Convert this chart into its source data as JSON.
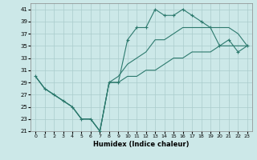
{
  "xlabel": "Humidex (Indice chaleur)",
  "background_color": "#cce8e8",
  "grid_color": "#aacccc",
  "line_color": "#2d7a6e",
  "xlim": [
    -0.5,
    23.5
  ],
  "ylim": [
    21,
    42
  ],
  "xticks": [
    0,
    1,
    2,
    3,
    4,
    5,
    6,
    7,
    8,
    9,
    10,
    11,
    12,
    13,
    14,
    15,
    16,
    17,
    18,
    19,
    20,
    21,
    22,
    23
  ],
  "yticks": [
    21,
    23,
    25,
    27,
    29,
    31,
    33,
    35,
    37,
    39,
    41
  ],
  "series": [
    {
      "x": [
        0,
        1,
        2,
        3,
        4,
        5,
        6,
        7,
        8,
        9,
        10,
        11,
        12,
        13,
        14,
        15,
        16,
        17,
        18,
        19,
        20,
        21,
        22,
        23
      ],
      "y": [
        30,
        28,
        27,
        26,
        25,
        23,
        23,
        21,
        29,
        29,
        36,
        38,
        38,
        41,
        40,
        40,
        41,
        40,
        39,
        38,
        35,
        36,
        34,
        35
      ],
      "marker": true
    },
    {
      "x": [
        0,
        1,
        2,
        3,
        4,
        5,
        6,
        7,
        8,
        9,
        10,
        11,
        12,
        13,
        14,
        15,
        16,
        17,
        18,
        19,
        20,
        21,
        22,
        23
      ],
      "y": [
        30,
        28,
        27,
        26,
        25,
        23,
        23,
        21,
        29,
        30,
        32,
        33,
        34,
        36,
        36,
        37,
        38,
        38,
        38,
        38,
        38,
        38,
        37,
        35
      ],
      "marker": false
    },
    {
      "x": [
        0,
        1,
        2,
        3,
        4,
        5,
        6,
        7,
        8,
        9,
        10,
        11,
        12,
        13,
        14,
        15,
        16,
        17,
        18,
        19,
        20,
        21,
        22,
        23
      ],
      "y": [
        30,
        28,
        27,
        26,
        25,
        23,
        23,
        21,
        29,
        29,
        30,
        30,
        31,
        31,
        32,
        33,
        33,
        34,
        34,
        34,
        35,
        35,
        35,
        35
      ],
      "marker": false
    }
  ]
}
